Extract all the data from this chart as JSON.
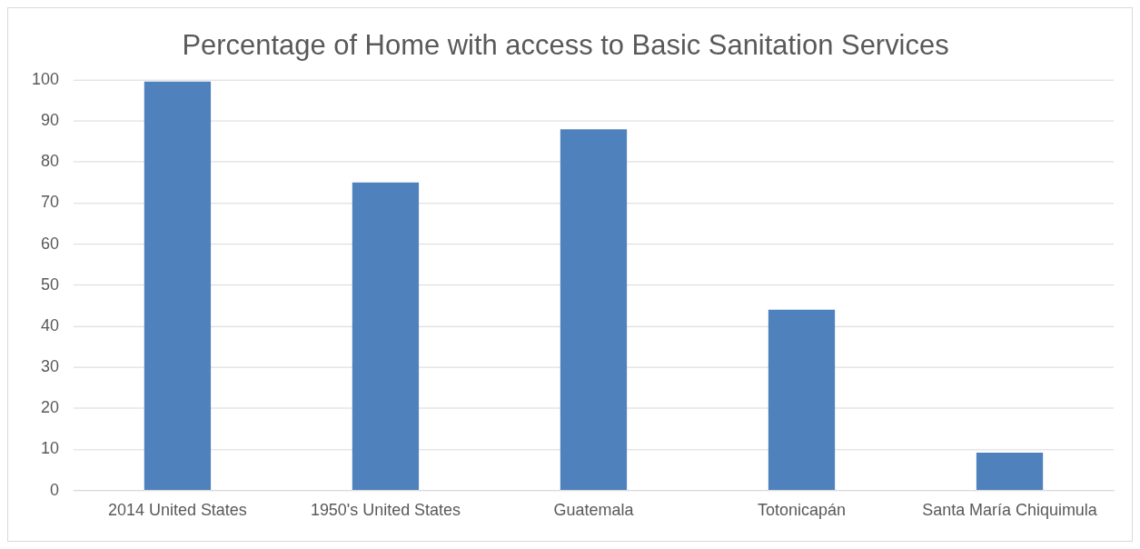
{
  "chart_data": {
    "type": "bar",
    "title": "Percentage of Home with access to Basic Sanitation Services",
    "categories": [
      "2014 United States",
      "1950's United States",
      "Guatemala",
      "Totonicapán",
      "Santa María Chiquimula"
    ],
    "values": [
      99.6,
      75,
      88,
      44,
      9.2
    ],
    "color": "#4f81bd",
    "ylim": [
      0,
      100
    ],
    "yticks": [
      0,
      10,
      20,
      30,
      40,
      50,
      60,
      70,
      80,
      90,
      100
    ],
    "grid": "y"
  }
}
